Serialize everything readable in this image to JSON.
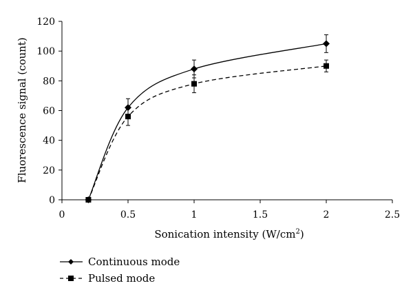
{
  "chart_data": {
    "type": "line",
    "title": "",
    "xlabel": "Sonication intensity (W/cm",
    "xlabel_sup": "2",
    "xlabel_suffix": ")",
    "ylabel": "Fluorescence signal (count)",
    "xlim": [
      0,
      2.5
    ],
    "ylim": [
      0,
      120
    ],
    "xticks": [
      0,
      0.5,
      1,
      1.5,
      2,
      2.5
    ],
    "xtick_labels": [
      "0",
      "0.5",
      "1",
      "1.5",
      "2",
      "2.5"
    ],
    "yticks": [
      0,
      20,
      40,
      60,
      80,
      100,
      120
    ],
    "ytick_labels": [
      "0",
      "20",
      "40",
      "60",
      "80",
      "100",
      "120"
    ],
    "grid": false,
    "legend_position": "bottom-left, outside plot",
    "series": [
      {
        "name": "Continuous mode",
        "marker": "diamond",
        "line_style": "solid",
        "color": "#000000",
        "x": [
          0.2,
          0.5,
          1,
          2
        ],
        "y": [
          0,
          62,
          88,
          105
        ],
        "error": [
          0,
          6,
          6,
          6
        ]
      },
      {
        "name": "Pulsed mode",
        "marker": "square",
        "line_style": "dashed",
        "color": "#000000",
        "x": [
          0.2,
          0.5,
          1,
          2
        ],
        "y": [
          0,
          56,
          78,
          90
        ],
        "error": [
          0,
          6,
          6,
          4
        ]
      }
    ]
  }
}
